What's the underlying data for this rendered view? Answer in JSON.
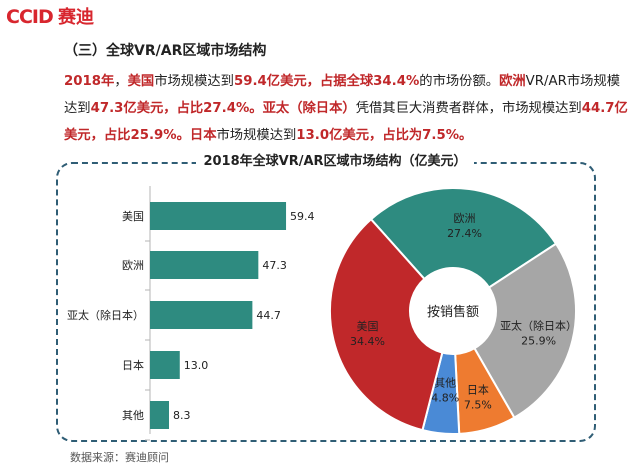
{
  "logo": {
    "text": "CCID赛迪"
  },
  "section_title": "（三）全球VR/AR区域市场结构",
  "paragraph": [
    {
      "t": "2018年",
      "h": true
    },
    {
      "t": "，",
      "h": false
    },
    {
      "t": "美国",
      "h": true
    },
    {
      "t": "市场规模达到",
      "h": false
    },
    {
      "t": "59.4亿美元，占据全球34.4%",
      "h": true
    },
    {
      "t": "的市场份额。",
      "h": false
    },
    {
      "t": "欧洲",
      "h": true
    },
    {
      "t": "VR/AR市场规模达到",
      "h": false
    },
    {
      "t": "47.3亿美元，占比27.4%。",
      "h": true
    },
    {
      "t": "亚太（除日本）",
      "h": true
    },
    {
      "t": "凭借其巨大消费者群体，市场规模达到",
      "h": false
    },
    {
      "t": "44.7亿美元，占比25.9%。",
      "h": true
    },
    {
      "t": "日本",
      "h": true
    },
    {
      "t": "市场规模达到",
      "h": false
    },
    {
      "t": "13.0亿美元，占比为7.5%。",
      "h": true
    }
  ],
  "chart_data": [
    {
      "type": "bar",
      "title": "2018年全球VR/AR区域市场结构（亿美元）",
      "orientation": "horizontal",
      "categories": [
        "美国",
        "欧洲",
        "亚太（除日本）",
        "日本",
        "其他"
      ],
      "values": [
        59.4,
        47.3,
        44.7,
        13.0,
        8.3
      ],
      "value_labels": [
        "59.4",
        "47.3",
        "44.7",
        "13.0",
        "8.3"
      ],
      "color": "#2e8b80",
      "xlim": [
        0,
        62
      ]
    },
    {
      "type": "pie",
      "center_label": "按销售额",
      "slices": [
        {
          "name": "欧洲",
          "pct": 27.4,
          "pct_label": "27.4%",
          "color": "#2e8b80"
        },
        {
          "name": "亚太（除日本）",
          "pct": 25.9,
          "pct_label": "25.9%",
          "color": "#a6a6a6"
        },
        {
          "name": "日本",
          "pct": 7.5,
          "pct_label": "7.5%",
          "color": "#ee7b30"
        },
        {
          "name": "其他",
          "pct": 4.8,
          "pct_label": "4.8%",
          "color": "#4a8ad6"
        },
        {
          "name": "美国",
          "pct": 34.4,
          "pct_label": "34.4%",
          "color": "#c0282a"
        }
      ]
    }
  ],
  "source_text": "数据来源：赛迪顾问"
}
